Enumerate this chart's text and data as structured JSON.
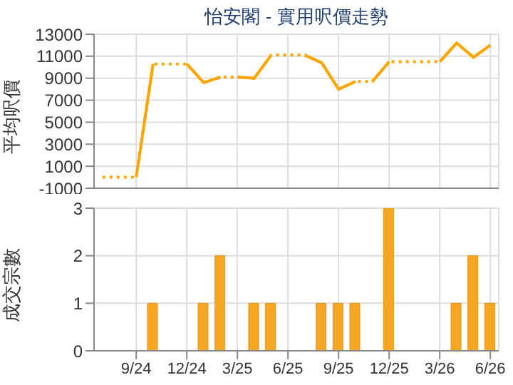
{
  "chart_data": [
    {
      "type": "line",
      "title": "怡安閣 - 實用呎價走勢",
      "ylabel": "平均呎價",
      "categories": [
        null,
        null,
        null,
        null,
        null,
        null,
        null,
        null,
        null,
        null,
        null,
        null,
        null,
        null,
        null,
        null,
        null,
        null,
        null,
        null,
        null,
        null,
        null,
        null
      ],
      "series": [
        {
          "color": "#ffa500",
          "line_style": "dotted",
          "values": [
            0,
            0,
            0,
            10300,
            10300,
            10300,
            8600,
            9100,
            9100,
            9000,
            11100,
            11100,
            11100,
            10400,
            8000,
            8700,
            8700,
            10500,
            10500,
            10500,
            10500,
            12200,
            10900,
            12000
          ]
        },
        {
          "color": "#ffa500",
          "line_style": "solid",
          "values": [
            null,
            null,
            0,
            10300,
            null,
            null,
            null,
            null,
            null,
            null,
            null,
            null,
            null,
            null,
            null,
            null,
            null,
            null,
            null,
            null,
            null,
            null,
            null,
            null
          ]
        },
        {
          "color": "#ffa500",
          "line_style": "solid",
          "values": [
            null,
            null,
            null,
            null,
            null,
            10300,
            8600,
            9100,
            null,
            null,
            null,
            null,
            null,
            null,
            null,
            null,
            null,
            null,
            null,
            null,
            null,
            null,
            null,
            null
          ]
        },
        {
          "color": "#ffa500",
          "line_style": "solid",
          "values": [
            null,
            null,
            null,
            null,
            null,
            null,
            null,
            null,
            9100,
            9000,
            11100,
            null,
            null,
            null,
            null,
            null,
            null,
            null,
            null,
            null,
            null,
            null,
            null,
            null
          ]
        },
        {
          "color": "#ffa500",
          "line_style": "solid",
          "values": [
            null,
            null,
            null,
            null,
            null,
            null,
            null,
            null,
            null,
            null,
            null,
            null,
            11100,
            10400,
            8000,
            8700,
            null,
            null,
            null,
            null,
            null,
            null,
            null,
            null
          ]
        },
        {
          "color": "#ffa500",
          "line_style": "solid",
          "values": [
            null,
            null,
            null,
            null,
            null,
            null,
            null,
            null,
            null,
            null,
            null,
            null,
            null,
            null,
            null,
            null,
            8700,
            10500,
            null,
            null,
            null,
            null,
            null,
            null
          ]
        },
        {
          "color": "#ffa500",
          "line_style": "solid",
          "values": [
            null,
            null,
            null,
            null,
            null,
            null,
            null,
            null,
            null,
            null,
            null,
            null,
            null,
            null,
            null,
            null,
            null,
            null,
            null,
            null,
            10500,
            12200,
            10900,
            12000
          ]
        }
      ],
      "ylim": [
        -1000,
        13000
      ],
      "yticks": [
        -1000,
        1000,
        3000,
        5000,
        7000,
        9000,
        11000,
        13000
      ],
      "grid": true,
      "tick_labels": "y"
    },
    {
      "type": "bar",
      "ylabel": "成交宗數",
      "categories": [
        null,
        null,
        "9/24",
        null,
        null,
        "12/24",
        null,
        null,
        "3/25",
        null,
        null,
        "6/25",
        null,
        null,
        "9/25",
        null,
        null,
        "12/25",
        null,
        null,
        "3/26",
        null,
        null,
        "6/26"
      ],
      "values": [
        0,
        0,
        0,
        1,
        0,
        0,
        1,
        2,
        0,
        1,
        1,
        0,
        0,
        1,
        1,
        1,
        0,
        3,
        0,
        0,
        0,
        1,
        2,
        1
      ],
      "color": "#f5a623",
      "ylim": [
        0,
        3
      ],
      "yticks": [
        0,
        1,
        2,
        3
      ],
      "grid": true
    }
  ]
}
